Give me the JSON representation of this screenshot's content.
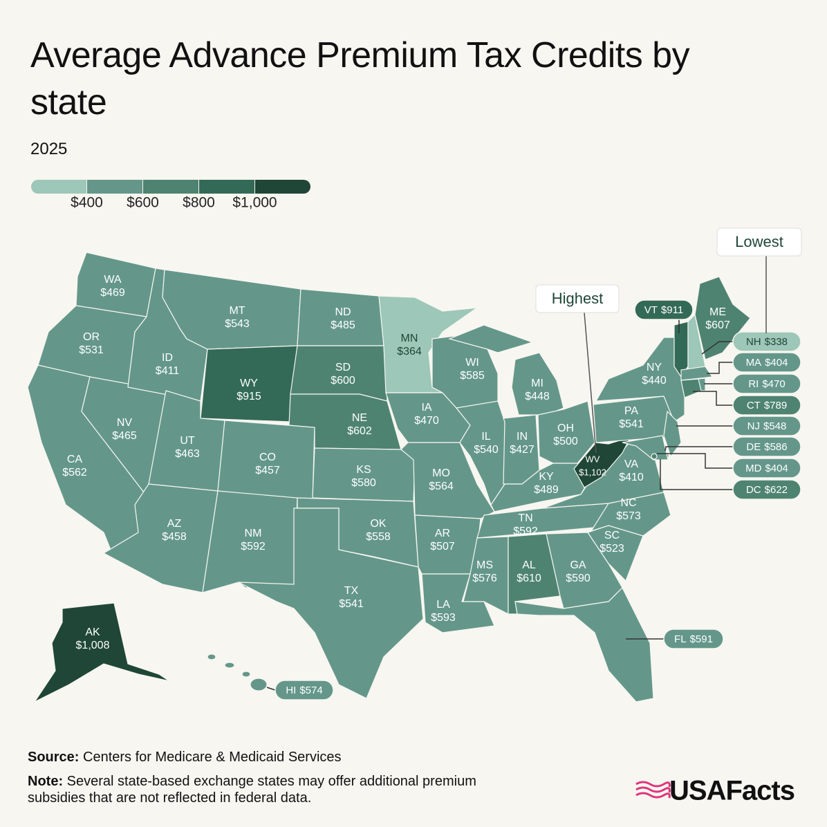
{
  "header": {
    "title": "Average Advance Premium Tax Credits by state",
    "subtitle": "2025"
  },
  "legend": {
    "ticks": [
      {
        "value": 400,
        "label": "$400"
      },
      {
        "value": 600,
        "label": "$600"
      },
      {
        "value": 800,
        "label": "$800"
      },
      {
        "value": 1000,
        "label": "$1,000"
      }
    ],
    "colors": [
      "#9dc7b8",
      "#64978a",
      "#4e8372",
      "#336a57",
      "#1f4637"
    ]
  },
  "annotations": {
    "highest": "Highest",
    "lowest": "Lowest"
  },
  "states": [
    {
      "abbr": "WA",
      "value": 469,
      "label": "$469"
    },
    {
      "abbr": "OR",
      "value": 531,
      "label": "$531"
    },
    {
      "abbr": "CA",
      "value": 562,
      "label": "$562"
    },
    {
      "abbr": "NV",
      "value": 465,
      "label": "$465"
    },
    {
      "abbr": "ID",
      "value": 411,
      "label": "$411"
    },
    {
      "abbr": "MT",
      "value": 543,
      "label": "$543"
    },
    {
      "abbr": "WY",
      "value": 915,
      "label": "$915"
    },
    {
      "abbr": "UT",
      "value": 463,
      "label": "$463"
    },
    {
      "abbr": "CO",
      "value": 457,
      "label": "$457"
    },
    {
      "abbr": "AZ",
      "value": 458,
      "label": "$458"
    },
    {
      "abbr": "NM",
      "value": 592,
      "label": "$592"
    },
    {
      "abbr": "ND",
      "value": 485,
      "label": "$485"
    },
    {
      "abbr": "SD",
      "value": 600,
      "label": "$600"
    },
    {
      "abbr": "NE",
      "value": 602,
      "label": "$602"
    },
    {
      "abbr": "KS",
      "value": 580,
      "label": "$580"
    },
    {
      "abbr": "OK",
      "value": 558,
      "label": "$558"
    },
    {
      "abbr": "TX",
      "value": 541,
      "label": "$541"
    },
    {
      "abbr": "MN",
      "value": 364,
      "label": "$364"
    },
    {
      "abbr": "IA",
      "value": 470,
      "label": "$470"
    },
    {
      "abbr": "MO",
      "value": 564,
      "label": "$564"
    },
    {
      "abbr": "AR",
      "value": 507,
      "label": "$507"
    },
    {
      "abbr": "LA",
      "value": 593,
      "label": "$593"
    },
    {
      "abbr": "WI",
      "value": 585,
      "label": "$585"
    },
    {
      "abbr": "IL",
      "value": 540,
      "label": "$540"
    },
    {
      "abbr": "MI",
      "value": 448,
      "label": "$448"
    },
    {
      "abbr": "IN",
      "value": 427,
      "label": "$427"
    },
    {
      "abbr": "OH",
      "value": 500,
      "label": "$500"
    },
    {
      "abbr": "KY",
      "value": 489,
      "label": "$489"
    },
    {
      "abbr": "TN",
      "value": 592,
      "label": "$592"
    },
    {
      "abbr": "MS",
      "value": 576,
      "label": "$576"
    },
    {
      "abbr": "AL",
      "value": 610,
      "label": "$610"
    },
    {
      "abbr": "GA",
      "value": 590,
      "label": "$590"
    },
    {
      "abbr": "FL",
      "value": 591,
      "label": "$591"
    },
    {
      "abbr": "SC",
      "value": 523,
      "label": "$523"
    },
    {
      "abbr": "NC",
      "value": 573,
      "label": "$573"
    },
    {
      "abbr": "VA",
      "value": 410,
      "label": "$410"
    },
    {
      "abbr": "WV",
      "value": 1102,
      "label": "$1,102"
    },
    {
      "abbr": "PA",
      "value": 541,
      "label": "$541"
    },
    {
      "abbr": "NY",
      "value": 440,
      "label": "$440"
    },
    {
      "abbr": "NJ",
      "value": 548,
      "label": "$548"
    },
    {
      "abbr": "DE",
      "value": 586,
      "label": "$586"
    },
    {
      "abbr": "MD",
      "value": 404,
      "label": "$404"
    },
    {
      "abbr": "DC",
      "value": 622,
      "label": "$622"
    },
    {
      "abbr": "VT",
      "value": 911,
      "label": "$911"
    },
    {
      "abbr": "NH",
      "value": 338,
      "label": "$338"
    },
    {
      "abbr": "ME",
      "value": 607,
      "label": "$607"
    },
    {
      "abbr": "MA",
      "value": 404,
      "label": "$404"
    },
    {
      "abbr": "CT",
      "value": 789,
      "label": "$789"
    },
    {
      "abbr": "RI",
      "value": 470,
      "label": "$470"
    },
    {
      "abbr": "AK",
      "value": 1008,
      "label": "$1,008"
    },
    {
      "abbr": "HI",
      "value": 574,
      "label": "$574"
    }
  ],
  "footer": {
    "source_label": "Source:",
    "source": "Centers for Medicare & Medicaid Services",
    "note_label": "Note:",
    "note": "Several state-based exchange states may offer additional premium subsidies that are not reflected in federal data.",
    "logo": "USAFacts"
  }
}
